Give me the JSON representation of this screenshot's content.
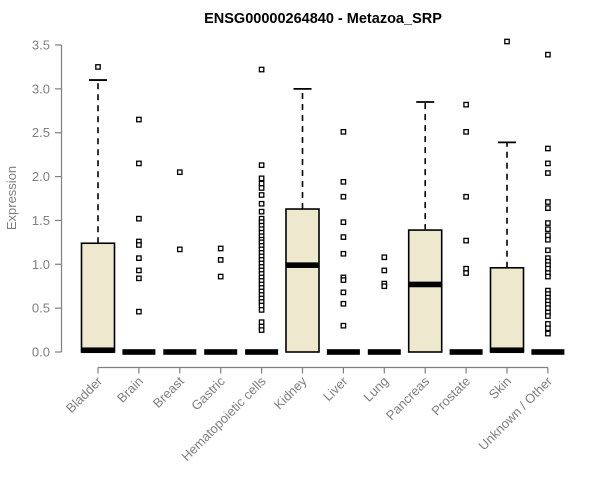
{
  "title": "ENSG00000264840 - Metazoa_SRP",
  "chart_data": {
    "type": "boxplot",
    "title": "ENSG00000264840 - Metazoa_SRP",
    "ylabel": "Expression",
    "ylim": [
      0,
      3.5
    ],
    "yticks": [
      "0.0",
      "0.5",
      "1.0",
      "1.5",
      "2.0",
      "2.5",
      "3.0",
      "3.5"
    ],
    "grid": false,
    "legend": "none",
    "colors": {
      "box_fill": "#EEE8CF",
      "box_stroke": "#000000",
      "median": "#000000",
      "axis": "#7f7f7f",
      "tick_text": "#7f7f7f",
      "title_text": "#000000",
      "outlier_fill": "#ffffff"
    },
    "categories": [
      "Bladder",
      "Brain",
      "Breast",
      "Gastric",
      "Hematopoietic cells",
      "Kidney",
      "Liver",
      "Lung",
      "Pancreas",
      "Prostate",
      "Skin",
      "Unknown / Other"
    ],
    "boxes": [
      {
        "category": "Bladder",
        "low": 0,
        "q1": 0,
        "median": 0.02,
        "q3": 1.24,
        "high": 3.1,
        "outliers": [
          3.25
        ]
      },
      {
        "category": "Brain",
        "low": 0,
        "q1": 0,
        "median": 0,
        "q3": 0,
        "high": 0,
        "outliers": [
          2.65,
          2.15,
          1.52,
          1.26,
          1.22,
          1.07,
          0.93,
          0.84,
          0.46
        ]
      },
      {
        "category": "Breast",
        "low": 0,
        "q1": 0,
        "median": 0,
        "q3": 0,
        "high": 0,
        "outliers": [
          2.05,
          1.17
        ]
      },
      {
        "category": "Gastric",
        "low": 0,
        "q1": 0,
        "median": 0,
        "q3": 0,
        "high": 0,
        "outliers": [
          1.18,
          1.05,
          0.86
        ]
      },
      {
        "category": "Hematopoietic cells",
        "low": 0,
        "q1": 0,
        "median": 0,
        "q3": 0,
        "high": 0,
        "outliers": [
          3.22,
          2.13,
          1.98,
          1.92,
          1.87,
          1.79,
          1.69,
          1.6,
          1.52,
          1.48,
          1.44,
          1.4,
          1.36,
          1.32,
          1.28,
          1.25,
          1.21,
          1.17,
          1.13,
          1.09,
          1.05,
          1.01,
          0.97,
          0.93,
          0.89,
          0.85,
          0.81,
          0.77,
          0.73,
          0.69,
          0.65,
          0.61,
          0.57,
          0.53,
          0.48,
          0.34,
          0.29,
          0.25
        ]
      },
      {
        "category": "Kidney",
        "low": 0,
        "q1": 0,
        "median": 0.99,
        "q3": 1.63,
        "high": 3.0,
        "outliers": []
      },
      {
        "category": "Liver",
        "low": 0,
        "q1": 0,
        "median": 0,
        "q3": 0,
        "high": 0,
        "outliers": [
          2.51,
          1.94,
          1.77,
          1.48,
          1.31,
          1.12,
          0.85,
          0.82,
          0.68,
          0.55,
          0.3
        ]
      },
      {
        "category": "Lung",
        "low": 0,
        "q1": 0,
        "median": 0,
        "q3": 0,
        "high": 0,
        "outliers": [
          1.08,
          0.93,
          0.78,
          0.75
        ]
      },
      {
        "category": "Pancreas",
        "low": 0,
        "q1": 0,
        "median": 0.77,
        "q3": 1.39,
        "high": 2.85,
        "outliers": []
      },
      {
        "category": "Prostate",
        "low": 0,
        "q1": 0,
        "median": 0,
        "q3": 0,
        "high": 0,
        "outliers": [
          2.82,
          2.51,
          1.77,
          1.27,
          0.95,
          0.9
        ]
      },
      {
        "category": "Skin",
        "low": 0,
        "q1": 0,
        "median": 0.02,
        "q3": 0.96,
        "high": 2.39,
        "outliers": [
          3.54
        ]
      },
      {
        "category": "Unknown / Other",
        "low": 0,
        "q1": 0,
        "median": 0,
        "q3": 0,
        "high": 0,
        "outliers": [
          3.39,
          2.32,
          2.15,
          2.04,
          1.71,
          1.64,
          1.47,
          1.4,
          1.33,
          1.28,
          1.16,
          1.07,
          1.03,
          0.99,
          0.95,
          0.9,
          0.86,
          0.7,
          0.66,
          0.62,
          0.58,
          0.54,
          0.5,
          0.45,
          0.41,
          0.32,
          0.27,
          0.21
        ]
      }
    ]
  }
}
